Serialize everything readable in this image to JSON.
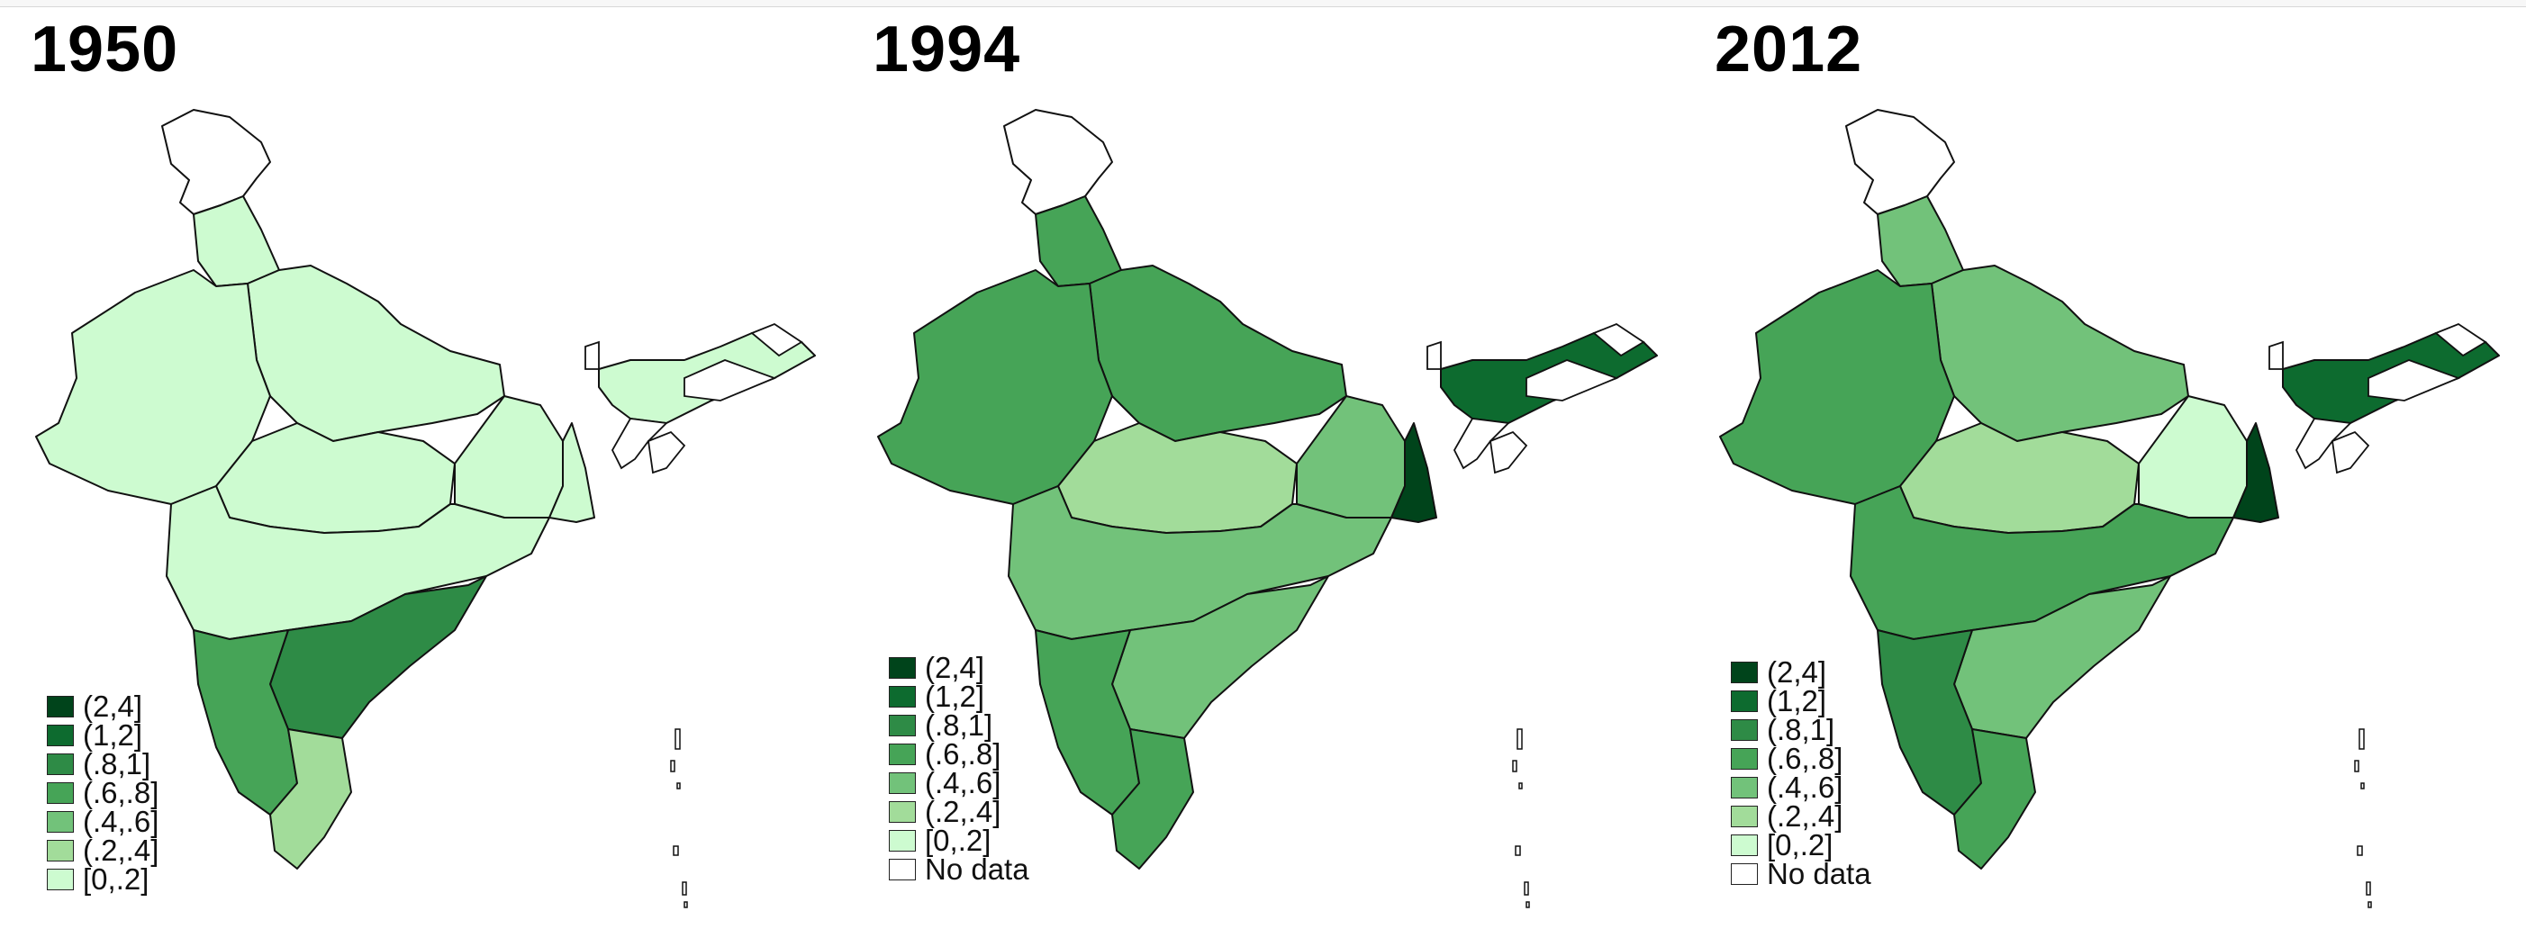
{
  "legend_colors": {
    "(2,4]": "#00441b",
    "(1,2]": "#0d6b2f",
    "(.8,1]": "#2e8b46",
    "(.6,.8]": "#46a457",
    "(.4,.6]": "#72c27a",
    "(.2,.4]": "#a2dc9a",
    "[0,.2]": "#cdfbd0",
    "No data": "#ffffff"
  },
  "panels": [
    {
      "title": "1950",
      "legend": [
        "(2,4]",
        "(1,2]",
        "(.8,1]",
        "(.6,.8]",
        "(.4,.6]",
        "(.2,.4]",
        "[0,.2]"
      ],
      "regions": {
        "kashmir": "No data",
        "northwest": "[0,.2]",
        "north": "[0,.2]",
        "central": "[0,.2]",
        "east": "[0,.2]",
        "west": "[0,.2]",
        "deccan": "[0,.2]",
        "andhra": "(.8,1]",
        "karnataka": "(.6,.8]",
        "tamilnadu": "(.2,.4]",
        "bengal": "[0,.2]",
        "northeast": "[0,.2]"
      }
    },
    {
      "title": "1994",
      "legend": [
        "(2,4]",
        "(1,2]",
        "(.8,1]",
        "(.6,.8]",
        "(.4,.6]",
        "(.2,.4]",
        "[0,.2]",
        "No data"
      ],
      "regions": {
        "kashmir": "No data",
        "northwest": "(.6,.8]",
        "north": "(.6,.8]",
        "central": "(.2,.4]",
        "east": "(.4,.6]",
        "west": "(.6,.8]",
        "deccan": "(.4,.6]",
        "andhra": "(.4,.6]",
        "karnataka": "(.6,.8]",
        "tamilnadu": "(.6,.8]",
        "bengal": "(2,4]",
        "northeast": "(1,2]"
      }
    },
    {
      "title": "2012",
      "legend": [
        "(2,4]",
        "(1,2]",
        "(.8,1]",
        "(.6,.8]",
        "(.4,.6]",
        "(.2,.4]",
        "[0,.2]",
        "No data"
      ],
      "regions": {
        "kashmir": "No data",
        "northwest": "(.4,.6]",
        "north": "(.4,.6]",
        "central": "(.2,.4]",
        "east": "[0,.2]",
        "west": "(.6,.8]",
        "deccan": "(.6,.8]",
        "andhra": "(.4,.6]",
        "karnataka": "(.8,1]",
        "tamilnadu": "(.6,.8]",
        "bengal": "(2,4]",
        "northeast": "(1,2]"
      }
    }
  ]
}
